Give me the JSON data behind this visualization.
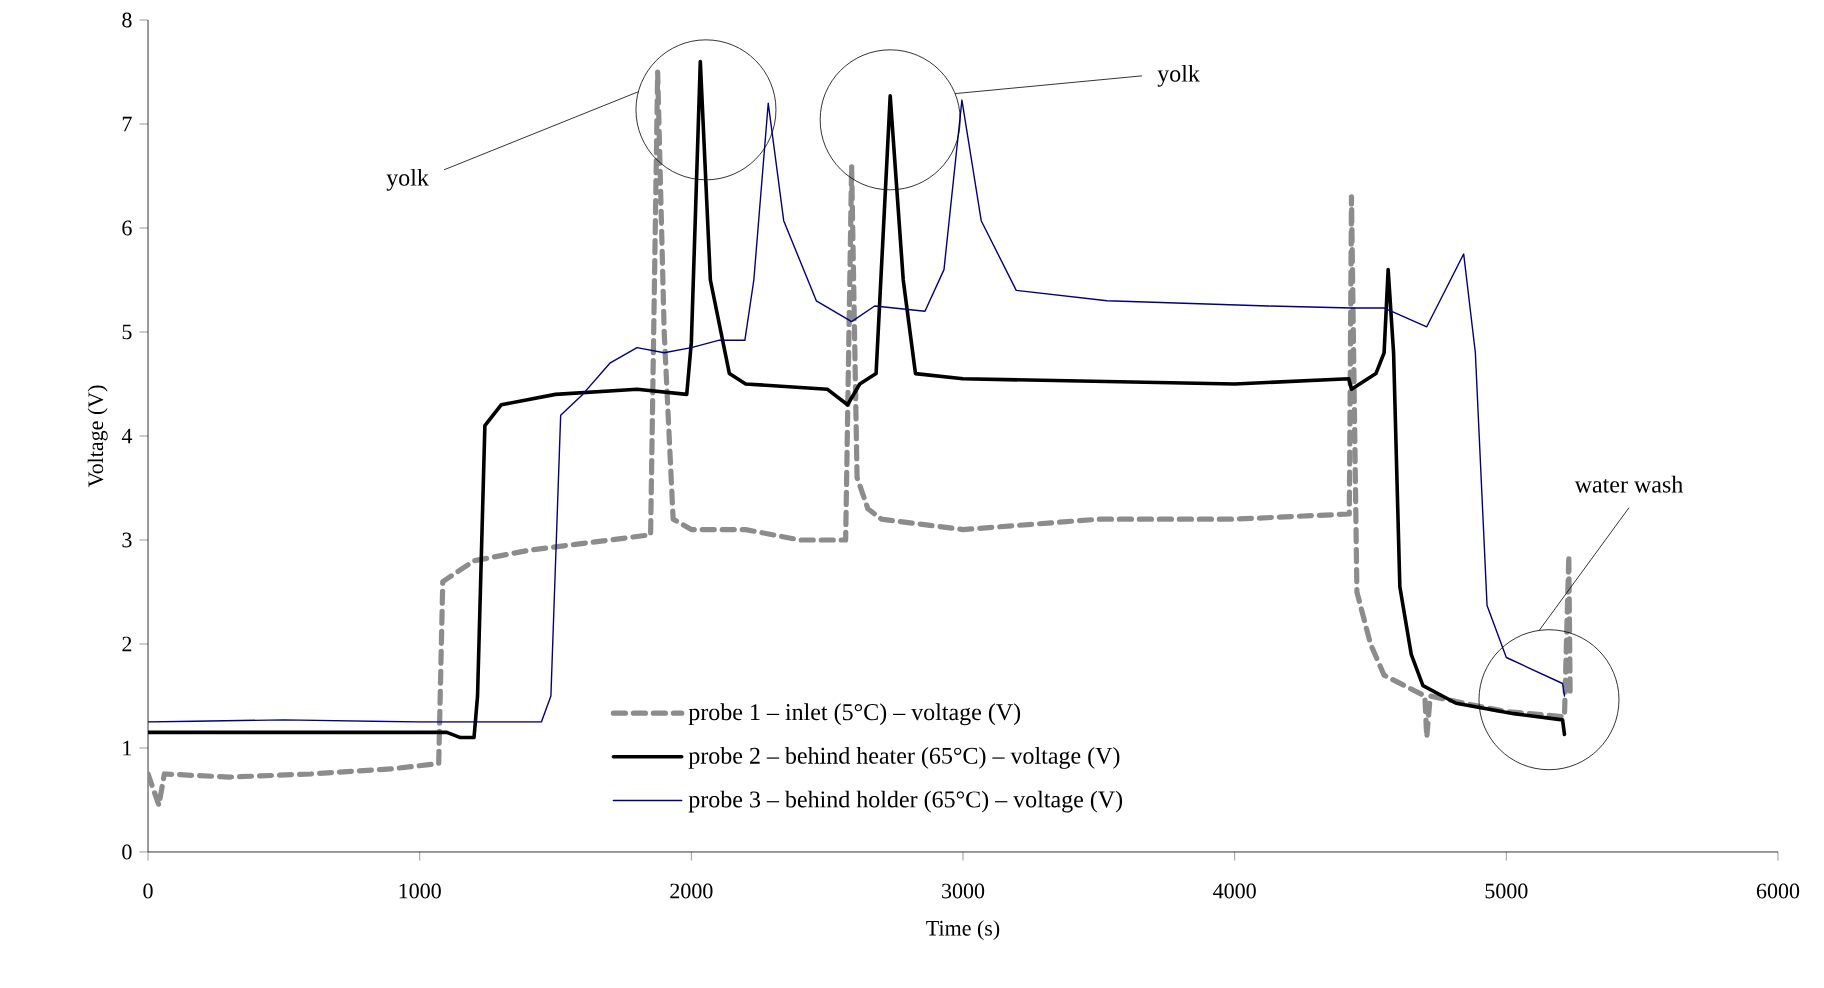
{
  "chart_data": {
    "type": "line",
    "xlabel": "Time (s)",
    "ylabel": "Voltage (V)",
    "xlim": [
      0,
      6000
    ],
    "xticks": [
      0,
      1000,
      2000,
      3000,
      4000,
      5000,
      6000
    ],
    "ylim": [
      0,
      8
    ],
    "yticks": [
      0,
      1,
      2,
      3,
      4,
      5,
      6,
      7,
      8
    ],
    "grid": false,
    "legend": "bottom",
    "marker": "none",
    "annotations": [
      "yolk",
      "yolk",
      "water wash"
    ],
    "series": [
      {
        "name": "probe 1 – inlet (5°C) – voltage (V)",
        "color": "#8c8c8c",
        "line_style": "dashed",
        "x": [
          0,
          40,
          60,
          300,
          600,
          900,
          1070,
          1085,
          1200,
          1400,
          1700,
          1850,
          1876,
          1900,
          1933,
          2000,
          2200,
          2400,
          2568,
          2590,
          2610,
          2650,
          2700,
          3000,
          3500,
          4000,
          4422,
          4430,
          4450,
          4500,
          4550,
          4700,
          4707,
          4720,
          4900,
          5000,
          5214,
          5230,
          5235
        ],
        "values": [
          0.75,
          0.45,
          0.75,
          0.72,
          0.75,
          0.8,
          0.85,
          2.6,
          2.8,
          2.9,
          3.0,
          3.05,
          7.5,
          5.0,
          3.2,
          3.1,
          3.1,
          3.0,
          3.0,
          6.6,
          3.6,
          3.3,
          3.2,
          3.1,
          3.2,
          3.2,
          3.25,
          6.3,
          2.5,
          2.0,
          1.7,
          1.5,
          1.1,
          1.5,
          1.4,
          1.35,
          1.3,
          2.85,
          1.5
        ]
      },
      {
        "name": "probe 2 – behind heater (65°C) – voltage (V)",
        "color": "#000000",
        "line_style": "solid",
        "x": [
          0,
          500,
          1100,
          1150,
          1200,
          1213,
          1240,
          1300,
          1500,
          1800,
          1983,
          2000,
          2033,
          2070,
          2140,
          2200,
          2500,
          2575,
          2620,
          2680,
          2732,
          2780,
          2825,
          3000,
          4000,
          4420,
          4430,
          4520,
          4550,
          4565,
          4585,
          4608,
          4650,
          4693,
          4815,
          5028,
          5207,
          5214
        ],
        "values": [
          1.15,
          1.15,
          1.15,
          1.1,
          1.1,
          1.5,
          4.1,
          4.3,
          4.4,
          4.45,
          4.4,
          4.9,
          7.6,
          5.5,
          4.6,
          4.5,
          4.45,
          4.3,
          4.5,
          4.6,
          7.27,
          5.5,
          4.6,
          4.55,
          4.5,
          4.55,
          4.45,
          4.6,
          4.8,
          5.6,
          4.8,
          2.55,
          1.9,
          1.6,
          1.43,
          1.33,
          1.27,
          1.13
        ]
      },
      {
        "name": "probe 3 – behind holder (65°C) – voltage (V)",
        "color": "#000080",
        "line_style": "solid",
        "x": [
          0,
          500,
          1000,
          1448,
          1483,
          1519,
          1600,
          1700,
          1800,
          1900,
          2000,
          2100,
          2197,
          2230,
          2283,
          2340,
          2460,
          2590,
          2675,
          2860,
          2930,
          2996,
          3067,
          3196,
          3530,
          4123,
          4430,
          4551,
          4707,
          4843,
          4886,
          4929,
          5000,
          5207,
          5214
        ],
        "values": [
          1.25,
          1.27,
          1.25,
          1.25,
          1.5,
          4.2,
          4.4,
          4.7,
          4.85,
          4.8,
          4.85,
          4.92,
          4.92,
          5.5,
          7.2,
          6.07,
          5.3,
          5.1,
          5.25,
          5.2,
          5.6,
          7.23,
          6.07,
          5.4,
          5.3,
          5.25,
          5.23,
          5.23,
          5.05,
          5.75,
          4.8,
          2.37,
          1.87,
          1.62,
          1.5
        ]
      }
    ]
  }
}
